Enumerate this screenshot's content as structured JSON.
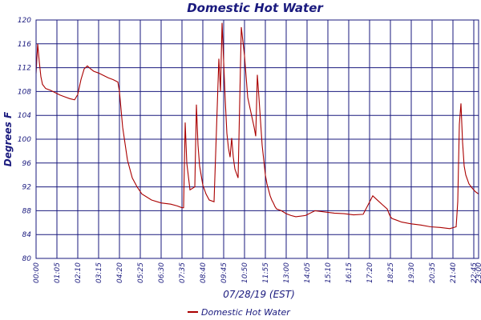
{
  "chart_data": {
    "type": "line",
    "title": "Domestic Hot Water",
    "xlabel": "07/28/19 (EST)",
    "ylabel": "Degrees F",
    "ylim": [
      80,
      120
    ],
    "yticks": [
      80,
      84,
      88,
      92,
      96,
      100,
      104,
      108,
      112,
      116,
      120
    ],
    "xlim": [
      "00:00",
      "23:00"
    ],
    "xticks": [
      "00:00",
      "01:05",
      "02:10",
      "03:15",
      "04:20",
      "05:25",
      "06:30",
      "07:35",
      "08:40",
      "09:45",
      "10:50",
      "11:55",
      "13:00",
      "14:05",
      "15:10",
      "16:15",
      "17:20",
      "18:25",
      "19:30",
      "20:35",
      "21:40",
      "22:45",
      "23:00"
    ],
    "grid": true,
    "legend_position": "bottom",
    "colors": {
      "series": "#aa0000",
      "text": "#1a1a7e",
      "grid": "#1a1a7e"
    },
    "series": [
      {
        "name": "Domestic Hot Water",
        "x": [
          "00:00",
          "00:05",
          "00:10",
          "00:15",
          "00:20",
          "00:30",
          "00:45",
          "01:00",
          "01:15",
          "01:30",
          "01:45",
          "02:00",
          "02:10",
          "02:20",
          "02:30",
          "02:40",
          "02:50",
          "03:00",
          "03:15",
          "03:30",
          "03:45",
          "04:00",
          "04:15",
          "04:20",
          "04:30",
          "04:45",
          "05:00",
          "05:15",
          "05:30",
          "06:00",
          "06:30",
          "07:00",
          "07:20",
          "07:35",
          "07:40",
          "07:45",
          "07:50",
          "08:00",
          "08:15",
          "08:20",
          "08:25",
          "08:30",
          "08:40",
          "08:50",
          "09:00",
          "09:15",
          "09:30",
          "09:35",
          "09:40",
          "09:45",
          "09:50",
          "09:55",
          "10:00",
          "10:05",
          "10:10",
          "10:15",
          "10:20",
          "10:30",
          "10:40",
          "10:50",
          "11:00",
          "11:10",
          "11:20",
          "11:25",
          "11:30",
          "11:35",
          "11:40",
          "11:45",
          "11:50",
          "11:55",
          "12:00",
          "12:05",
          "12:10",
          "12:15",
          "12:20",
          "12:25",
          "12:30",
          "12:45",
          "13:00",
          "13:15",
          "13:30",
          "14:00",
          "14:30",
          "15:00",
          "15:30",
          "16:00",
          "16:30",
          "17:00",
          "17:30",
          "18:00",
          "18:15",
          "18:20",
          "18:25",
          "18:30",
          "18:45",
          "19:00",
          "19:30",
          "20:00",
          "20:30",
          "21:00",
          "21:30",
          "21:50",
          "21:55",
          "22:00",
          "22:05",
          "22:10",
          "22:15",
          "22:20",
          "22:30",
          "22:40",
          "22:50",
          "23:00"
        ],
        "y": [
          111.0,
          116.0,
          113.0,
          110.5,
          109.2,
          108.5,
          108.2,
          107.8,
          107.4,
          107.1,
          106.8,
          106.6,
          107.5,
          110.0,
          111.8,
          112.3,
          111.8,
          111.4,
          111.1,
          110.7,
          110.3,
          110.0,
          109.6,
          108.0,
          102.0,
          96.5,
          93.5,
          92.0,
          90.8,
          89.8,
          89.3,
          89.1,
          88.8,
          88.5,
          88.5,
          102.8,
          96.0,
          91.5,
          92.0,
          105.8,
          99.0,
          95.5,
          92.3,
          90.8,
          89.8,
          89.5,
          113.5,
          108.0,
          119.5,
          113.0,
          106.5,
          101.0,
          98.5,
          97.0,
          100.2,
          97.0,
          95.0,
          93.5,
          118.8,
          114.0,
          107.0,
          104.5,
          102.0,
          100.5,
          110.8,
          107.0,
          103.0,
          99.0,
          96.5,
          94.0,
          92.5,
          91.5,
          90.5,
          89.8,
          89.3,
          88.7,
          88.3,
          88.0,
          87.5,
          87.2,
          87.0,
          87.2,
          88.0,
          87.8,
          87.6,
          87.5,
          87.3,
          87.4,
          90.5,
          89.0,
          88.3,
          87.6,
          87.0,
          86.7,
          86.4,
          86.1,
          85.8,
          85.6,
          85.3,
          85.2,
          85.0,
          85.3,
          89.5,
          102.5,
          106.0,
          99.5,
          95.5,
          94.0,
          92.5,
          91.8,
          91.2,
          90.8
        ]
      }
    ]
  }
}
